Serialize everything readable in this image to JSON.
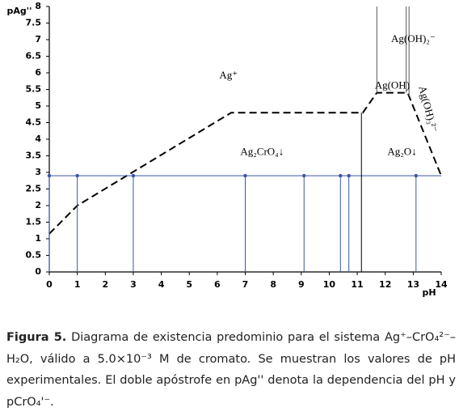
{
  "chart_data": {
    "type": "line",
    "ylabel": "pAg''",
    "xlabel": "pH",
    "xlim": [
      0,
      14
    ],
    "ylim": [
      0,
      8
    ],
    "xticks": [
      0,
      1,
      2,
      3,
      4,
      5,
      6,
      7,
      8,
      9,
      10,
      11,
      12,
      13,
      14
    ],
    "yticks": [
      0,
      0.5,
      1,
      1.5,
      2,
      2.5,
      3,
      3.5,
      4,
      4.5,
      5,
      5.5,
      6,
      6.5,
      7,
      7.5,
      8
    ],
    "series": [
      {
        "style": "dashed",
        "color": "#000000",
        "x": [
          0,
          1,
          6.5,
          11.2,
          11.7,
          12.8,
          14
        ],
        "values": [
          1.15,
          2.0,
          4.8,
          4.8,
          5.4,
          5.4,
          2.9
        ]
      },
      {
        "style": "solid",
        "color": "#3b55a8",
        "x": [
          0,
          14
        ],
        "values": [
          2.9,
          2.9
        ]
      },
      {
        "style": "points",
        "color": "#3b55a8",
        "x": [
          0,
          1,
          3,
          7,
          9.1,
          10.4,
          10.7,
          13.1
        ],
        "values": [
          2.9,
          2.9,
          2.9,
          2.9,
          2.9,
          2.9,
          2.9,
          2.9
        ]
      },
      {
        "style": "solid",
        "color": "#000000",
        "x": [
          11.15,
          11.15
        ],
        "values": [
          0,
          4.8
        ]
      },
      {
        "style": "solid",
        "color": "#555555",
        "x": [
          11.7,
          11.7
        ],
        "values": [
          5.4,
          8
        ]
      },
      {
        "style": "solid",
        "color": "#555555",
        "x": [
          12.75,
          12.75
        ],
        "values": [
          5.4,
          8
        ]
      },
      {
        "style": "solid",
        "color": "#555555",
        "x": [
          12.85,
          12.85
        ],
        "values": [
          5.3,
          8
        ]
      }
    ],
    "annotations": [
      {
        "text": "Ag⁺",
        "x": 6.4,
        "y": 5.9
      },
      {
        "text": "Ag₂CrO₄↓",
        "x": 7.6,
        "y": 3.6
      },
      {
        "text": "Ag₂O↓",
        "x": 12.6,
        "y": 3.6
      },
      {
        "text": "Ag(OH)",
        "x": 12.25,
        "y": 5.6
      },
      {
        "text": "Ag(OH)₂⁻",
        "x": 13.0,
        "y": 7.0
      },
      {
        "text": "Ag(OH)₃²⁻",
        "x": 13.5,
        "y": 4.9
      }
    ]
  },
  "caption": {
    "label": "Figura 5.",
    "text": "Diagrama de existencia predominio para el sistema Ag⁺–CrO₄²⁻–H₂O, válido a 5.0×10⁻³ M de cromato. Se muestran los valores de pH experimentales. El doble apóstrofe en pAg'' denota la dependencia del pH y pCrO₄'⁻."
  }
}
